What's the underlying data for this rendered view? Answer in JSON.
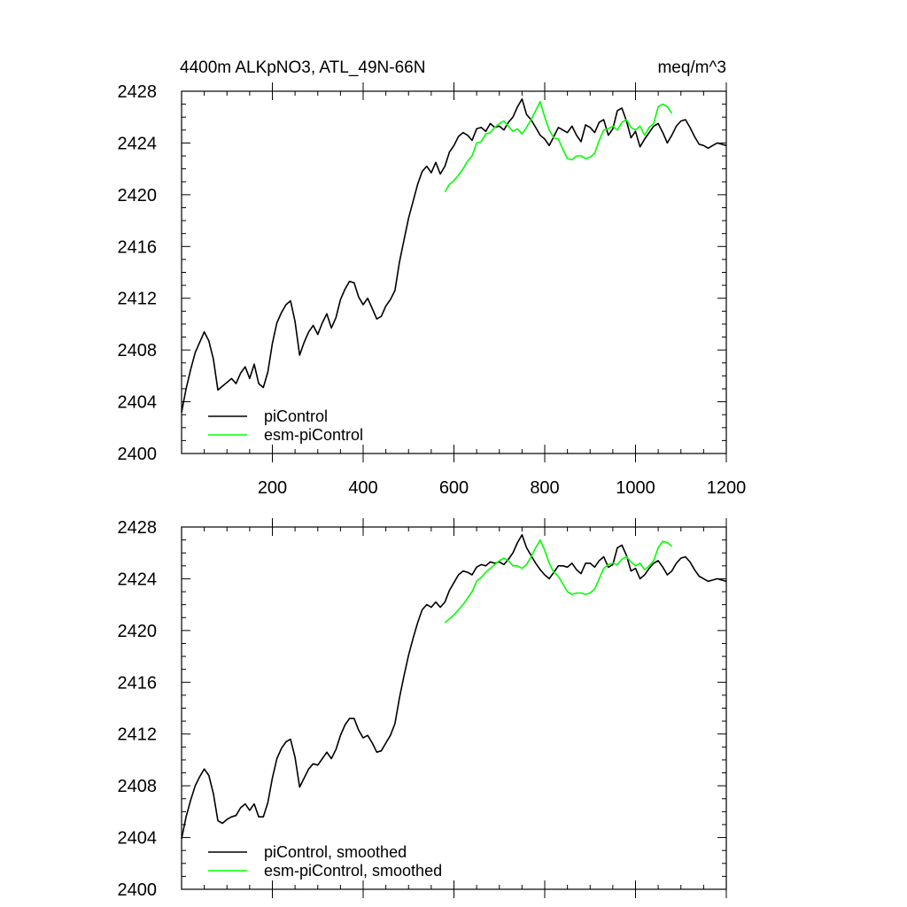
{
  "colors": {
    "piControl": "#000000",
    "esm_piControl": "#00ff00"
  },
  "chart_data": [
    {
      "type": "line",
      "title": "4400m ALKpNO3, ATL_49N-66N",
      "units": "meq/m^3",
      "xlabel": "",
      "ylabel": "",
      "xlim": [
        0,
        1200
      ],
      "ylim": [
        2400,
        2428
      ],
      "x_ticks": [
        200,
        400,
        600,
        800,
        1000,
        1200
      ],
      "x_tick_labels": [
        "200",
        "400",
        "600",
        "800",
        "1000",
        "1200"
      ],
      "y_ticks": [
        2400,
        2404,
        2408,
        2412,
        2416,
        2420,
        2424,
        2428
      ],
      "y_tick_labels": [
        "2400",
        "2404",
        "2408",
        "2412",
        "2416",
        "2420",
        "2424",
        "2428"
      ],
      "legend": [
        "piControl",
        "esm-piControl"
      ],
      "legend_position": "bottom-left",
      "series": [
        {
          "name": "piControl",
          "color": "#000000",
          "x": [
            0,
            10,
            20,
            30,
            40,
            50,
            60,
            70,
            80,
            90,
            100,
            110,
            120,
            130,
            140,
            150,
            160,
            170,
            180,
            190,
            200,
            210,
            220,
            230,
            240,
            250,
            260,
            270,
            280,
            290,
            300,
            310,
            320,
            330,
            340,
            350,
            360,
            370,
            380,
            390,
            400,
            410,
            420,
            430,
            440,
            450,
            460,
            470,
            480,
            490,
            500,
            510,
            520,
            530,
            540,
            550,
            560,
            570,
            580,
            590,
            600,
            610,
            620,
            630,
            640,
            650,
            660,
            670,
            680,
            690,
            700,
            710,
            720,
            730,
            740,
            750,
            760,
            770,
            780,
            790,
            800,
            810,
            820,
            830,
            840,
            850,
            860,
            870,
            880,
            890,
            900,
            910,
            920,
            930,
            940,
            950,
            960,
            970,
            980,
            990,
            1000,
            1010,
            1020,
            1030,
            1040,
            1050,
            1060,
            1070,
            1080,
            1090,
            1100,
            1110,
            1120,
            1130,
            1140,
            1150,
            1160,
            1170,
            1180,
            1190,
            1200
          ],
          "values": [
            2403.2,
            2405.0,
            2406.5,
            2407.8,
            2408.6,
            2409.4,
            2408.7,
            2407.3,
            2404.9,
            2405.2,
            2405.5,
            2405.8,
            2405.4,
            2406.2,
            2406.7,
            2405.8,
            2406.9,
            2405.4,
            2405.1,
            2406.3,
            2408.5,
            2410.1,
            2410.9,
            2411.5,
            2411.8,
            2410.2,
            2407.6,
            2408.6,
            2409.4,
            2409.9,
            2409.2,
            2410.1,
            2410.8,
            2409.7,
            2410.5,
            2411.9,
            2412.7,
            2413.3,
            2413.2,
            2412.1,
            2411.5,
            2412.0,
            2411.2,
            2410.4,
            2410.6,
            2411.4,
            2411.9,
            2412.6,
            2414.8,
            2416.5,
            2418.2,
            2419.5,
            2420.8,
            2421.8,
            2422.2,
            2421.7,
            2422.5,
            2421.6,
            2422.2,
            2423.3,
            2423.8,
            2424.5,
            2424.8,
            2424.6,
            2424.2,
            2425.1,
            2425.2,
            2424.9,
            2425.5,
            2425.2,
            2425.3,
            2425.0,
            2425.6,
            2426.0,
            2426.8,
            2427.4,
            2426.2,
            2425.8,
            2425.2,
            2424.6,
            2424.3,
            2423.8,
            2424.5,
            2425.2,
            2425.0,
            2424.8,
            2425.3,
            2424.6,
            2424.1,
            2425.4,
            2425.2,
            2424.8,
            2425.6,
            2425.8,
            2424.6,
            2425.1,
            2426.5,
            2426.7,
            2425.7,
            2424.4,
            2424.9,
            2423.7,
            2424.3,
            2424.8,
            2425.3,
            2425.5,
            2424.8,
            2424.0,
            2424.6,
            2425.3,
            2425.7,
            2425.8,
            2425.2,
            2424.5,
            2423.9,
            2423.8,
            2423.6,
            2423.8,
            2424.0,
            2423.9,
            2423.8
          ]
        },
        {
          "name": "esm-piControl",
          "color": "#00ff00",
          "x": [
            580,
            590,
            600,
            610,
            620,
            630,
            640,
            650,
            660,
            670,
            680,
            690,
            700,
            710,
            720,
            730,
            740,
            750,
            760,
            770,
            780,
            790,
            800,
            810,
            820,
            830,
            840,
            850,
            860,
            870,
            880,
            890,
            900,
            910,
            920,
            930,
            940,
            950,
            960,
            970,
            980,
            990,
            1000,
            1010,
            1020,
            1030,
            1040,
            1050,
            1060,
            1070,
            1080
          ],
          "values": [
            2420.2,
            2420.8,
            2421.1,
            2421.5,
            2422.0,
            2422.6,
            2423.0,
            2424.0,
            2424.1,
            2424.7,
            2424.8,
            2425.2,
            2425.5,
            2425.7,
            2425.3,
            2424.9,
            2425.1,
            2424.7,
            2425.2,
            2425.8,
            2426.5,
            2427.2,
            2426.0,
            2425.0,
            2424.4,
            2424.3,
            2423.5,
            2422.8,
            2422.7,
            2423.0,
            2423.0,
            2422.8,
            2422.9,
            2423.2,
            2424.2,
            2425.0,
            2425.1,
            2425.3,
            2425.0,
            2425.6,
            2425.8,
            2425.2,
            2425.0,
            2425.3,
            2424.6,
            2425.2,
            2425.5,
            2426.8,
            2427.0,
            2426.8,
            2426.3
          ]
        }
      ]
    },
    {
      "type": "line",
      "title": "",
      "units": "",
      "xlabel": "",
      "ylabel": "",
      "xlim": [
        0,
        1200
      ],
      "ylim": [
        2400,
        2428
      ],
      "x_ticks": [
        200,
        400,
        600,
        800,
        1000,
        1200
      ],
      "x_tick_labels": [],
      "y_ticks": [
        2400,
        2404,
        2408,
        2412,
        2416,
        2420,
        2424,
        2428
      ],
      "y_tick_labels": [
        "2400",
        "2404",
        "2408",
        "2412",
        "2416",
        "2420",
        "2424",
        "2428"
      ],
      "legend": [
        "piControl, smoothed",
        "esm-piControl, smoothed"
      ],
      "legend_position": "bottom-left",
      "series": [
        {
          "name": "piControl, smoothed",
          "color": "#000000",
          "x": [
            0,
            10,
            20,
            30,
            40,
            50,
            60,
            70,
            80,
            90,
            100,
            110,
            120,
            130,
            140,
            150,
            160,
            170,
            180,
            190,
            200,
            210,
            220,
            230,
            240,
            250,
            260,
            270,
            280,
            290,
            300,
            310,
            320,
            330,
            340,
            350,
            360,
            370,
            380,
            390,
            400,
            410,
            420,
            430,
            440,
            450,
            460,
            470,
            480,
            490,
            500,
            510,
            520,
            530,
            540,
            550,
            560,
            570,
            580,
            590,
            600,
            610,
            620,
            630,
            640,
            650,
            660,
            670,
            680,
            690,
            700,
            710,
            720,
            730,
            740,
            750,
            760,
            770,
            780,
            790,
            800,
            810,
            820,
            830,
            840,
            850,
            860,
            870,
            880,
            890,
            900,
            910,
            920,
            930,
            940,
            950,
            960,
            970,
            980,
            990,
            1000,
            1010,
            1020,
            1030,
            1040,
            1050,
            1060,
            1070,
            1080,
            1090,
            1100,
            1110,
            1120,
            1130,
            1140,
            1150,
            1160,
            1170,
            1180,
            1190,
            1200
          ],
          "values": [
            2403.9,
            2405.6,
            2406.9,
            2408.0,
            2408.7,
            2409.3,
            2408.8,
            2407.4,
            2405.3,
            2405.1,
            2405.4,
            2405.6,
            2405.7,
            2406.3,
            2406.6,
            2406.1,
            2406.6,
            2405.6,
            2405.6,
            2406.7,
            2408.6,
            2410.1,
            2410.9,
            2411.4,
            2411.6,
            2410.2,
            2407.9,
            2408.6,
            2409.3,
            2409.7,
            2409.6,
            2410.1,
            2410.6,
            2410.1,
            2410.8,
            2411.9,
            2412.7,
            2413.2,
            2413.2,
            2412.3,
            2411.7,
            2411.9,
            2411.3,
            2410.6,
            2410.7,
            2411.3,
            2411.9,
            2412.8,
            2414.8,
            2416.5,
            2418.1,
            2419.4,
            2420.6,
            2421.6,
            2422.0,
            2421.8,
            2422.2,
            2421.8,
            2422.2,
            2423.1,
            2423.7,
            2424.3,
            2424.6,
            2424.5,
            2424.3,
            2424.9,
            2425.1,
            2425.0,
            2425.3,
            2425.2,
            2425.3,
            2425.1,
            2425.5,
            2426.0,
            2426.8,
            2427.4,
            2426.4,
            2425.8,
            2425.2,
            2424.7,
            2424.3,
            2424.0,
            2424.5,
            2425.0,
            2425.0,
            2424.9,
            2425.2,
            2424.7,
            2424.4,
            2425.2,
            2425.2,
            2424.9,
            2425.4,
            2425.7,
            2424.9,
            2425.1,
            2426.4,
            2426.6,
            2425.8,
            2424.6,
            2424.8,
            2424.0,
            2424.3,
            2424.8,
            2425.2,
            2425.4,
            2424.9,
            2424.3,
            2424.6,
            2425.2,
            2425.6,
            2425.7,
            2425.3,
            2424.7,
            2424.2,
            2424.0,
            2423.8,
            2423.9,
            2424.0,
            2423.9,
            2423.8
          ]
        },
        {
          "name": "esm-piControl, smoothed",
          "color": "#00ff00",
          "x": [
            580,
            590,
            600,
            610,
            620,
            630,
            640,
            650,
            660,
            670,
            680,
            690,
            700,
            710,
            720,
            730,
            740,
            750,
            760,
            770,
            780,
            790,
            800,
            810,
            820,
            830,
            840,
            850,
            860,
            870,
            880,
            890,
            900,
            910,
            920,
            930,
            940,
            950,
            960,
            970,
            980,
            990,
            1000,
            1010,
            1020,
            1030,
            1040,
            1050,
            1060,
            1070,
            1080
          ],
          "values": [
            2420.6,
            2420.9,
            2421.2,
            2421.6,
            2422.0,
            2422.5,
            2423.0,
            2423.8,
            2424.1,
            2424.5,
            2424.8,
            2425.1,
            2425.4,
            2425.6,
            2425.4,
            2425.0,
            2425.0,
            2424.8,
            2425.1,
            2425.7,
            2426.4,
            2427.0,
            2426.2,
            2425.2,
            2424.5,
            2424.2,
            2423.6,
            2423.0,
            2422.8,
            2422.9,
            2422.9,
            2422.8,
            2422.9,
            2423.2,
            2424.0,
            2424.8,
            2425.1,
            2425.2,
            2425.1,
            2425.5,
            2425.7,
            2425.3,
            2425.0,
            2425.2,
            2424.7,
            2425.0,
            2425.4,
            2426.4,
            2426.9,
            2426.8,
            2426.5
          ]
        }
      ]
    }
  ]
}
